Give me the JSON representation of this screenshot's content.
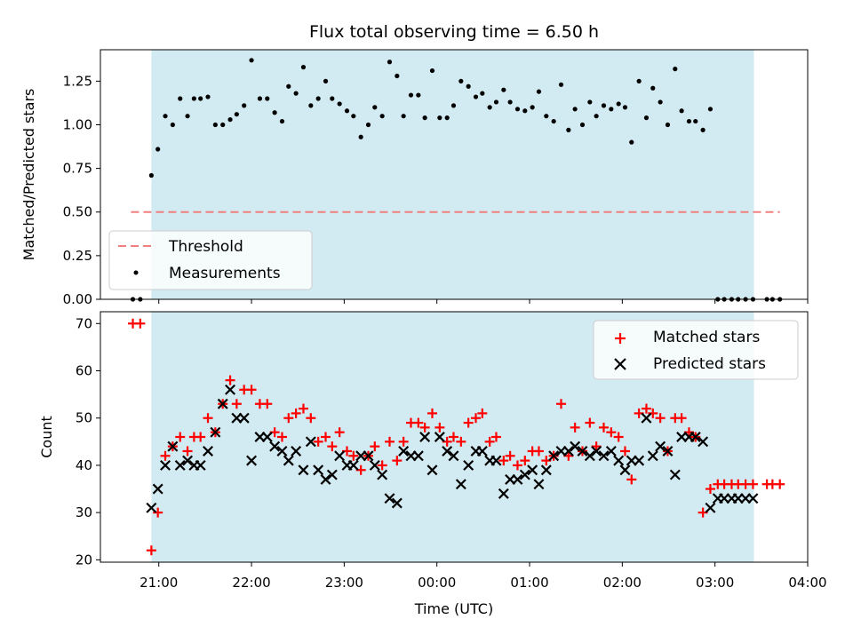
{
  "chart_data": [
    {
      "type": "scatter",
      "panel": "top",
      "title": "Flux total observing time = 6.50 h",
      "ylabel": "Matched/Predicted stars",
      "ylim": [
        0,
        1.43
      ],
      "yticks": [
        0.0,
        0.25,
        0.5,
        0.75,
        1.0,
        1.25
      ],
      "ytick_labels": [
        "0.00",
        "0.25",
        "0.50",
        "0.75",
        "1.00",
        "1.25"
      ],
      "shaded_span_hours": [
        20.92,
        27.42
      ],
      "shade_color": "#add8e6",
      "threshold": {
        "name": "Threshold",
        "value": 0.5,
        "x_range": [
          20.7,
          27.7
        ],
        "color": "#f08080",
        "style": "dashed"
      },
      "legend": {
        "position": "lower-left",
        "entries": [
          "Threshold",
          "Measurements"
        ]
      },
      "series": [
        {
          "name": "Measurements",
          "marker": "dot",
          "color": "#000000",
          "x": [
            20.72,
            20.8,
            20.92,
            20.99,
            21.07,
            21.15,
            21.23,
            21.31,
            21.38,
            21.45,
            21.53,
            21.61,
            21.69,
            21.77,
            21.84,
            21.92,
            22.0,
            22.09,
            22.17,
            22.25,
            22.33,
            22.4,
            22.48,
            22.56,
            22.64,
            22.72,
            22.8,
            22.87,
            22.95,
            23.03,
            23.1,
            23.18,
            23.26,
            23.33,
            23.41,
            23.49,
            23.57,
            23.64,
            23.72,
            23.8,
            23.87,
            23.95,
            24.03,
            24.11,
            24.18,
            24.26,
            24.34,
            24.42,
            24.49,
            24.57,
            24.64,
            24.72,
            24.79,
            24.87,
            24.95,
            25.03,
            25.1,
            25.18,
            25.26,
            25.34,
            25.42,
            25.49,
            25.57,
            25.65,
            25.72,
            25.8,
            25.88,
            25.96,
            26.03,
            26.1,
            26.18,
            26.26,
            26.33,
            26.41,
            26.49,
            26.57,
            26.64,
            26.72,
            26.79,
            26.87,
            26.95,
            27.03,
            27.1,
            27.18,
            27.25,
            27.33,
            27.41,
            27.56,
            27.62,
            27.7
          ],
          "y": [
            0.0,
            0.0,
            0.71,
            0.86,
            1.05,
            1.0,
            1.15,
            1.05,
            1.15,
            1.15,
            1.16,
            1.0,
            1.0,
            1.03,
            1.06,
            1.11,
            1.37,
            1.15,
            1.15,
            1.07,
            1.02,
            1.22,
            1.18,
            1.33,
            1.11,
            1.15,
            1.25,
            1.15,
            1.12,
            1.08,
            1.05,
            0.93,
            1.0,
            1.1,
            1.05,
            1.36,
            1.28,
            1.05,
            1.17,
            1.17,
            1.04,
            1.31,
            1.04,
            1.04,
            1.11,
            1.25,
            1.22,
            1.16,
            1.18,
            1.1,
            1.13,
            1.2,
            1.13,
            1.09,
            1.08,
            1.1,
            1.19,
            1.05,
            1.02,
            1.23,
            0.97,
            1.09,
            1.0,
            1.13,
            1.05,
            1.11,
            1.09,
            1.12,
            1.1,
            0.9,
            1.25,
            1.04,
            1.21,
            1.13,
            1.0,
            1.32,
            1.08,
            1.02,
            1.02,
            0.97,
            1.09,
            0.0,
            0.0,
            0.0,
            0.0,
            0.0,
            0.0,
            0.0,
            0.0,
            0.0
          ]
        }
      ]
    },
    {
      "type": "scatter",
      "panel": "bottom",
      "xlabel": "Time (UTC)",
      "ylabel": "Count",
      "xlim_hours": [
        20.37,
        28.0
      ],
      "ylim": [
        19.5,
        72.5
      ],
      "yticks": [
        20,
        30,
        40,
        50,
        60,
        70
      ],
      "ytick_labels": [
        "20",
        "30",
        "40",
        "50",
        "60",
        "70"
      ],
      "xticks_hours": [
        21,
        22,
        23,
        24,
        25,
        26,
        27,
        28
      ],
      "xtick_labels": [
        "21:00",
        "22:00",
        "23:00",
        "00:00",
        "01:00",
        "02:00",
        "03:00",
        "04:00"
      ],
      "shaded_span_hours": [
        20.92,
        27.42
      ],
      "shade_color": "#add8e6",
      "legend": {
        "position": "top-right",
        "entries": [
          "Matched stars",
          "Predicted stars"
        ]
      },
      "series": [
        {
          "name": "Matched stars",
          "marker": "plus",
          "color": "#ff0000",
          "x": [
            20.72,
            20.8,
            20.92,
            20.99,
            21.07,
            21.15,
            21.23,
            21.31,
            21.38,
            21.45,
            21.53,
            21.61,
            21.69,
            21.77,
            21.84,
            21.92,
            22.0,
            22.09,
            22.17,
            22.25,
            22.33,
            22.4,
            22.48,
            22.56,
            22.64,
            22.72,
            22.8,
            22.87,
            22.95,
            23.03,
            23.1,
            23.18,
            23.26,
            23.33,
            23.41,
            23.49,
            23.57,
            23.64,
            23.72,
            23.8,
            23.87,
            23.95,
            24.03,
            24.11,
            24.18,
            24.26,
            24.34,
            24.42,
            24.49,
            24.57,
            24.64,
            24.72,
            24.79,
            24.87,
            24.95,
            25.03,
            25.1,
            25.18,
            25.26,
            25.34,
            25.42,
            25.49,
            25.57,
            25.65,
            25.72,
            25.8,
            25.88,
            25.96,
            26.03,
            26.1,
            26.18,
            26.26,
            26.33,
            26.41,
            26.49,
            26.57,
            26.64,
            26.72,
            26.79,
            26.87,
            26.95,
            27.03,
            27.1,
            27.18,
            27.25,
            27.33,
            27.41,
            27.56,
            27.62,
            27.7
          ],
          "y": [
            70,
            70,
            22,
            30,
            42,
            44,
            46,
            43,
            46,
            46,
            50,
            47,
            53,
            58,
            53,
            56,
            56,
            53,
            53,
            47,
            46,
            50,
            51,
            52,
            50,
            45,
            46,
            44,
            47,
            43,
            42,
            39,
            42,
            44,
            40,
            45,
            41,
            45,
            49,
            49,
            48,
            51,
            48,
            45,
            46,
            45,
            49,
            50,
            51,
            45,
            46,
            41,
            42,
            40,
            41,
            43,
            43,
            41,
            42,
            53,
            42,
            48,
            43,
            49,
            44,
            48,
            47,
            46,
            43,
            37,
            51,
            52,
            51,
            50,
            43,
            50,
            50,
            47,
            46,
            30,
            35,
            36,
            36,
            36,
            36,
            36,
            36,
            36,
            36,
            36
          ]
        },
        {
          "name": "Predicted stars",
          "marker": "x",
          "color": "#000000",
          "x": [
            20.92,
            20.99,
            21.07,
            21.15,
            21.23,
            21.31,
            21.38,
            21.45,
            21.53,
            21.61,
            21.69,
            21.77,
            21.84,
            21.92,
            22.0,
            22.09,
            22.17,
            22.25,
            22.33,
            22.4,
            22.48,
            22.56,
            22.64,
            22.72,
            22.8,
            22.87,
            22.95,
            23.03,
            23.1,
            23.18,
            23.26,
            23.33,
            23.41,
            23.49,
            23.57,
            23.64,
            23.72,
            23.8,
            23.87,
            23.95,
            24.03,
            24.11,
            24.18,
            24.26,
            24.34,
            24.42,
            24.49,
            24.57,
            24.64,
            24.72,
            24.79,
            24.87,
            24.95,
            25.03,
            25.1,
            25.18,
            25.26,
            25.34,
            25.42,
            25.49,
            25.57,
            25.65,
            25.72,
            25.8,
            25.88,
            25.96,
            26.03,
            26.1,
            26.18,
            26.26,
            26.33,
            26.41,
            26.49,
            26.57,
            26.64,
            26.72,
            26.79,
            26.87,
            26.95,
            27.03,
            27.1,
            27.18,
            27.25,
            27.33,
            27.41
          ],
          "y": [
            31,
            35,
            40,
            44,
            40,
            41,
            40,
            40,
            43,
            47,
            53,
            56,
            50,
            50,
            41,
            46,
            46,
            44,
            43,
            41,
            43,
            39,
            45,
            39,
            37,
            38,
            42,
            40,
            40,
            42,
            42,
            40,
            38,
            33,
            32,
            43,
            42,
            42,
            46,
            39,
            46,
            43,
            42,
            36,
            40,
            43,
            43,
            41,
            41,
            34,
            37,
            37,
            38,
            39,
            36,
            39,
            42,
            43,
            43,
            44,
            43,
            42,
            43,
            42,
            43,
            41,
            39,
            41,
            41,
            50,
            42,
            44,
            43,
            38,
            46,
            46,
            46,
            45,
            31,
            33,
            33,
            33,
            33,
            33,
            33
          ]
        }
      ]
    }
  ]
}
